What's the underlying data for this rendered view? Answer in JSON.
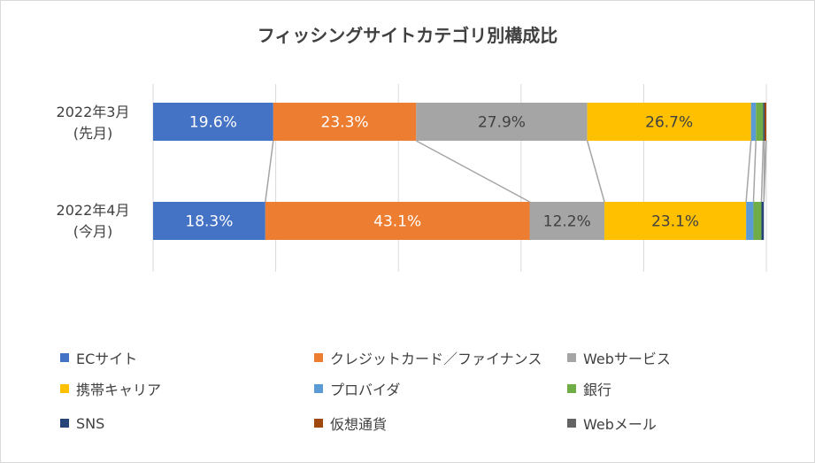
{
  "chart_data": {
    "type": "bar",
    "orientation": "horizontal-stacked-100",
    "title": "フィッシングサイトカテゴリ別構成比",
    "categories": [
      [
        "2022年3月",
        "(先月)"
      ],
      [
        "2022年4月",
        "(今月)"
      ]
    ],
    "series": [
      {
        "name": "ECサイト",
        "color": "#4472c4",
        "values": [
          19.6,
          18.3
        ],
        "labels": [
          "19.6%",
          "18.3%"
        ]
      },
      {
        "name": "クレジットカード／ファイナンス",
        "color": "#ed7d31",
        "values": [
          23.3,
          43.1
        ],
        "labels": [
          "23.3%",
          "43.1%"
        ]
      },
      {
        "name": "Webサービス",
        "color": "#a5a5a5",
        "values": [
          27.9,
          12.2
        ],
        "labels": [
          "27.9%",
          "12.2%"
        ]
      },
      {
        "name": "携帯キャリア",
        "color": "#ffc000",
        "values": [
          26.7,
          23.1
        ],
        "labels": [
          "26.7%",
          "23.1%"
        ]
      },
      {
        "name": "プロバイダ",
        "color": "#5b9bd5",
        "values": [
          0.8,
          1.2
        ],
        "labels": [
          "",
          ""
        ]
      },
      {
        "name": "銀行",
        "color": "#70ad47",
        "values": [
          1.2,
          1.3
        ],
        "labels": [
          "",
          ""
        ]
      },
      {
        "name": "SNS",
        "color": "#264478",
        "values": [
          0.2,
          0.4
        ],
        "labels": [
          "",
          ""
        ]
      },
      {
        "name": "仮想通貨",
        "color": "#9e480e",
        "values": [
          0.3,
          0.0
        ],
        "labels": [
          "",
          ""
        ]
      },
      {
        "name": "Webメール",
        "color": "#636363",
        "values": [
          0.0,
          0.0
        ],
        "labels": [
          "",
          ""
        ]
      }
    ],
    "xlim": [
      0,
      100
    ],
    "gridlines": [
      0,
      20,
      40,
      60,
      80,
      100
    ],
    "legend_position": "bottom",
    "series_lines": true,
    "axis_color": "#d9d9d9",
    "series_line_color": "#a5a5a5"
  }
}
